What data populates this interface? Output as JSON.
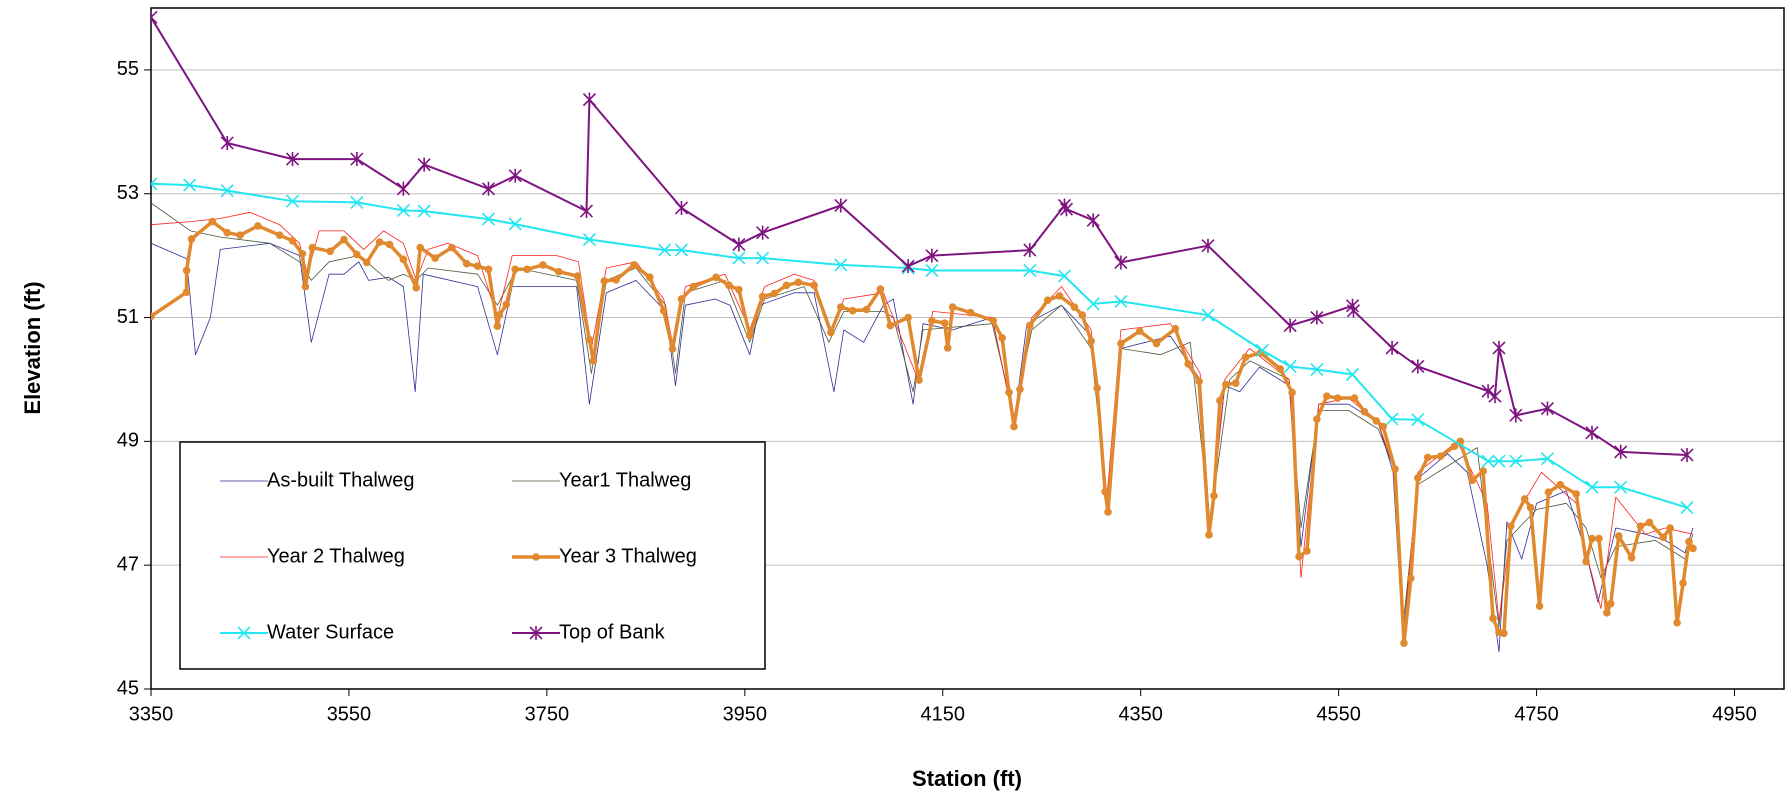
{
  "chart_data": {
    "type": "line",
    "x_label": "Station (ft)",
    "y_label": "Elevation (ft)",
    "xlim": [
      3350,
      5000
    ],
    "xticks": [
      3350,
      3550,
      3750,
      3950,
      4150,
      4350,
      4550,
      4750,
      4950
    ],
    "ylim": [
      45,
      56
    ],
    "yticks": [
      45,
      47,
      49,
      51,
      53,
      55
    ],
    "grid": true,
    "legend": "lower left",
    "series": [
      {
        "name": "As-built Thalweg",
        "color": "#2e2e9a",
        "width": 0.8,
        "marker": "none",
        "x": [
          3350,
          3386,
          3395,
          3410,
          3420,
          3470,
          3500,
          3512,
          3530,
          3545,
          3560,
          3570,
          3590,
          3605,
          3617,
          3625,
          3680,
          3700,
          3715,
          3780,
          3793,
          3810,
          3840,
          3870,
          3880,
          3890,
          3920,
          3935,
          3955,
          3965,
          4000,
          4020,
          4040,
          4050,
          4070,
          4090,
          4100,
          4120,
          4130,
          4160,
          4200,
          4222,
          4235,
          4270,
          4300,
          4316,
          4330,
          4380,
          4410,
          4420,
          4435,
          4450,
          4470,
          4500,
          4512,
          4530,
          4560,
          4590,
          4605,
          4615,
          4630,
          4660,
          4680,
          4700,
          4712,
          4720,
          4735,
          4750,
          4780,
          4800,
          4812,
          4830,
          4860,
          4880,
          4900,
          4908
        ],
        "values": [
          52.2,
          51.95,
          50.4,
          51.0,
          52.1,
          52.2,
          52.0,
          50.6,
          51.7,
          51.7,
          51.9,
          51.6,
          51.65,
          51.5,
          49.8,
          51.7,
          51.5,
          50.4,
          51.5,
          51.5,
          49.6,
          51.4,
          51.6,
          51.1,
          49.9,
          51.2,
          51.3,
          51.2,
          50.4,
          51.2,
          51.4,
          51.4,
          49.8,
          50.8,
          50.6,
          51.2,
          51.3,
          49.6,
          50.9,
          50.8,
          51.0,
          49.3,
          50.9,
          51.2,
          50.7,
          47.9,
          50.5,
          50.7,
          50.0,
          47.6,
          49.9,
          49.8,
          50.2,
          49.9,
          47.3,
          49.6,
          49.6,
          49.3,
          48.5,
          45.8,
          48.4,
          48.8,
          48.5,
          47.0,
          45.6,
          47.7,
          47.1,
          48.0,
          48.2,
          47.2,
          46.4,
          47.6,
          47.5,
          47.4,
          47.2,
          47.6
        ]
      },
      {
        "name": "Year1 Thalweg",
        "color": "#4a5a3a",
        "width": 0.8,
        "marker": "none",
        "x": [
          3350,
          3390,
          3420,
          3470,
          3500,
          3512,
          3530,
          3560,
          3590,
          3605,
          3618,
          3630,
          3680,
          3700,
          3720,
          3780,
          3795,
          3810,
          3840,
          3870,
          3880,
          3890,
          3930,
          3955,
          3970,
          4010,
          4035,
          4050,
          4090,
          4100,
          4120,
          4130,
          4200,
          4222,
          4240,
          4270,
          4300,
          4316,
          4330,
          4370,
          4400,
          4420,
          4440,
          4460,
          4500,
          4512,
          4530,
          4560,
          4590,
          4605,
          4615,
          4630,
          4660,
          4690,
          4700,
          4712,
          4720,
          4750,
          4780,
          4800,
          4815,
          4830,
          4870,
          4900,
          4908
        ],
        "values": [
          52.85,
          52.4,
          52.3,
          52.2,
          51.9,
          51.6,
          51.9,
          52.0,
          51.6,
          51.7,
          51.6,
          51.8,
          51.7,
          51.2,
          51.8,
          51.6,
          50.1,
          51.6,
          51.8,
          51.2,
          50.1,
          51.4,
          51.6,
          50.6,
          51.3,
          51.5,
          50.6,
          51.1,
          51.1,
          51.0,
          49.8,
          50.8,
          50.9,
          49.4,
          50.8,
          51.2,
          50.5,
          48.0,
          50.5,
          50.4,
          50.6,
          47.7,
          50.0,
          50.3,
          50.0,
          47.6,
          49.5,
          49.5,
          49.2,
          48.6,
          46.0,
          48.3,
          48.6,
          48.9,
          47.5,
          46.0,
          47.4,
          47.9,
          48.0,
          47.6,
          46.8,
          47.3,
          47.4,
          47.1,
          47.5
        ]
      },
      {
        "name": "Year 2 Thalweg",
        "color": "#ff2020",
        "width": 0.8,
        "marker": "none",
        "x": [
          3350,
          3390,
          3420,
          3450,
          3480,
          3500,
          3508,
          3520,
          3545,
          3565,
          3585,
          3605,
          3618,
          3630,
          3650,
          3680,
          3700,
          3715,
          3760,
          3782,
          3795,
          3810,
          3840,
          3868,
          3878,
          3890,
          3930,
          3955,
          3970,
          4000,
          4020,
          4037,
          4050,
          4090,
          4100,
          4125,
          4140,
          4200,
          4222,
          4240,
          4270,
          4300,
          4316,
          4330,
          4380,
          4410,
          4420,
          4435,
          4460,
          4500,
          4512,
          4530,
          4560,
          4590,
          4605,
          4616,
          4630,
          4670,
          4700,
          4712,
          4725,
          4755,
          4790,
          4800,
          4815,
          4830,
          4860,
          4880,
          4908
        ],
        "values": [
          52.5,
          52.55,
          52.6,
          52.7,
          52.5,
          52.2,
          51.7,
          52.4,
          52.4,
          52.1,
          52.4,
          52.2,
          51.6,
          52.1,
          52.2,
          52.0,
          51.0,
          52.0,
          52.0,
          51.9,
          50.5,
          51.8,
          51.9,
          51.3,
          50.5,
          51.5,
          51.7,
          50.8,
          51.5,
          51.7,
          51.6,
          50.7,
          51.3,
          51.4,
          51.0,
          50.0,
          51.1,
          51.0,
          49.3,
          51.0,
          51.5,
          50.8,
          48.1,
          50.8,
          50.9,
          50.1,
          47.5,
          50.0,
          50.5,
          50.0,
          46.8,
          49.6,
          49.7,
          49.3,
          48.6,
          45.9,
          48.5,
          49.0,
          48.0,
          46.1,
          47.7,
          48.5,
          48.0,
          47.2,
          46.3,
          48.1,
          47.5,
          47.6,
          47.5
        ]
      },
      {
        "name": "Year 3 Thalweg",
        "color": "#e0892f",
        "width": 3.5,
        "marker": "circle",
        "x": [
          3350,
          3386,
          3386,
          3391,
          3412,
          3427,
          3440,
          3458,
          3480,
          3493,
          3503,
          3506,
          3513,
          3531,
          3545,
          3558,
          3568,
          3581,
          3591,
          3605,
          3618,
          3622,
          3637,
          3654,
          3669,
          3680,
          3691,
          3700,
          3702,
          3709,
          3718,
          3730,
          3746,
          3762,
          3781,
          3793,
          3797,
          3808,
          3820,
          3838,
          3854,
          3868,
          3877,
          3886,
          3898,
          3921,
          3934,
          3944,
          3955,
          3968,
          3980,
          3992,
          4004,
          4020,
          4037,
          4047,
          4059,
          4073,
          4087,
          4097,
          4115,
          4126,
          4139,
          4152,
          4155,
          4160,
          4178,
          4201,
          4210,
          4217,
          4222,
          4228,
          4238,
          4256,
          4268,
          4283,
          4291,
          4300,
          4306,
          4314,
          4317,
          4330,
          4349,
          4366,
          4385,
          4398,
          4409,
          4419,
          4424,
          4430,
          4436,
          4446,
          4456,
          4471,
          4491,
          4503,
          4510,
          4518,
          4528,
          4538,
          4549,
          4566,
          4576,
          4588,
          4595,
          4607,
          4616,
          4623,
          4630,
          4640,
          4653,
          4667,
          4673,
          4685,
          4696,
          4706,
          4712,
          4717,
          4724,
          4738,
          4744,
          4753,
          4762,
          4774,
          4790,
          4800,
          4806,
          4813,
          4821,
          4825,
          4833,
          4846,
          4855,
          4864,
          4878,
          4885,
          4892,
          4898,
          4904,
          4908
        ],
        "values": [
          51.02,
          51.41,
          51.76,
          52.27,
          52.55,
          52.37,
          52.33,
          52.48,
          52.33,
          52.24,
          52.03,
          51.5,
          52.13,
          52.07,
          52.26,
          52.02,
          51.89,
          52.22,
          52.18,
          51.94,
          51.48,
          52.13,
          51.96,
          52.13,
          51.87,
          51.83,
          51.78,
          50.86,
          51.04,
          51.21,
          51.78,
          51.78,
          51.85,
          51.74,
          51.67,
          50.64,
          50.3,
          51.59,
          51.61,
          51.85,
          51.65,
          51.11,
          50.49,
          51.3,
          51.5,
          51.65,
          51.52,
          51.45,
          50.71,
          51.34,
          51.39,
          51.52,
          51.57,
          51.52,
          50.76,
          51.17,
          51.11,
          51.13,
          51.46,
          50.87,
          51.0,
          49.99,
          50.95,
          50.91,
          50.51,
          51.17,
          51.08,
          50.95,
          50.67,
          49.79,
          49.24,
          49.84,
          50.87,
          51.28,
          51.35,
          51.17,
          51.04,
          50.62,
          49.86,
          48.19,
          47.86,
          50.58,
          50.78,
          50.58,
          50.82,
          50.25,
          49.97,
          47.49,
          48.12,
          49.66,
          49.92,
          49.94,
          50.36,
          50.43,
          50.17,
          49.79,
          47.14,
          47.23,
          49.36,
          49.73,
          49.7,
          49.7,
          49.48,
          49.33,
          49.24,
          48.55,
          45.74,
          46.79,
          48.41,
          48.74,
          48.76,
          48.92,
          49.0,
          48.37,
          48.52,
          46.14,
          45.92,
          45.9,
          47.63,
          48.07,
          47.93,
          46.34,
          48.18,
          48.3,
          48.15,
          47.06,
          47.43,
          47.43,
          46.23,
          46.38,
          47.47,
          47.12,
          47.63,
          47.69,
          47.45,
          47.6,
          46.07,
          46.71,
          47.38,
          47.27
        ]
      },
      {
        "name": "Water Surface",
        "color": "#22e6f0",
        "width": 2,
        "marker": "x",
        "x": [
          3350,
          3389,
          3427,
          3493,
          3558,
          3605,
          3626,
          3691,
          3718,
          3793,
          3869,
          3886,
          3944,
          3968,
          4047,
          4115,
          4139,
          4238,
          4273,
          4302,
          4330,
          4418,
          4473,
          4501,
          4528,
          4564,
          4604,
          4630,
          4701,
          4712,
          4729,
          4761,
          4806,
          4835,
          4902
        ],
        "values": [
          53.16,
          53.14,
          53.05,
          52.88,
          52.86,
          52.73,
          52.72,
          52.59,
          52.51,
          52.26,
          52.09,
          52.09,
          51.96,
          51.96,
          51.85,
          51.8,
          51.76,
          51.76,
          51.67,
          51.22,
          51.26,
          51.04,
          50.47,
          50.21,
          50.16,
          50.08,
          49.36,
          49.35,
          48.68,
          48.68,
          48.68,
          48.72,
          48.26,
          48.26,
          47.93
        ]
      },
      {
        "name": "Top of Bank",
        "color": "#7e1480",
        "width": 2,
        "marker": "star",
        "x": [
          3350,
          3427,
          3493,
          3558,
          3605,
          3626,
          3691,
          3718,
          3790,
          3793,
          3886,
          3944,
          3968,
          4047,
          4115,
          4139,
          4238,
          4273,
          4275,
          4302,
          4330,
          4418,
          4501,
          4528,
          4564,
          4565,
          4604,
          4630,
          4701,
          4708,
          4712,
          4729,
          4761,
          4806,
          4835,
          4902
        ],
        "values": [
          55.85,
          53.82,
          53.56,
          53.56,
          53.08,
          53.47,
          53.08,
          53.29,
          52.72,
          54.52,
          52.77,
          52.18,
          52.37,
          52.81,
          51.83,
          52.0,
          52.09,
          52.81,
          52.75,
          52.57,
          51.89,
          52.16,
          50.87,
          51.0,
          51.19,
          51.11,
          50.51,
          50.21,
          49.81,
          49.73,
          50.51,
          49.42,
          49.53,
          49.14,
          48.83,
          48.78
        ]
      }
    ]
  }
}
